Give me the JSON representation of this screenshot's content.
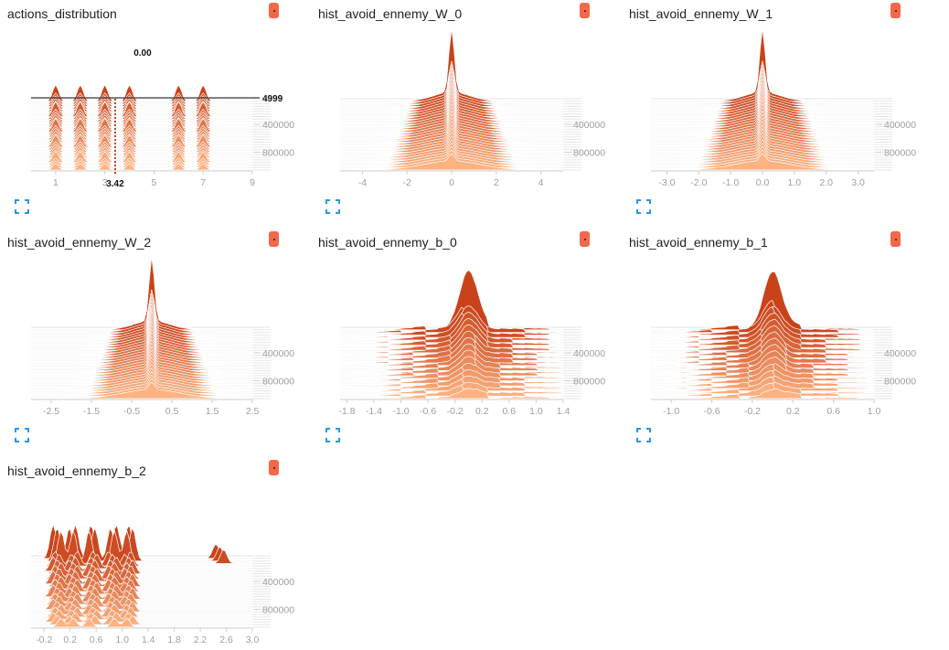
{
  "colors": {
    "accent": "#f3684a",
    "ridge_old": "#fdb282",
    "ridge_new": "#c9431a",
    "tick": "#9e9e9e",
    "expand_icon": "#2d96e6"
  },
  "cards": [
    {
      "id": "actions_distribution",
      "title": "actions_distribution",
      "menu_icon": "dots-vertical-icon",
      "expand_icon": "fullscreen-icon",
      "hover": {
        "value_label": "0.00",
        "x_label": "3.42",
        "step_label": "4999"
      },
      "chart_data": {
        "type": "histogram",
        "mode": "offset",
        "xlim": [
          0,
          9
        ],
        "xticks": [
          "1",
          "3",
          "5",
          "7",
          "9"
        ],
        "yticks": [
          "400000",
          "800000"
        ],
        "modes": [
          1,
          2,
          3,
          4,
          6,
          7
        ],
        "grid": true
      }
    },
    {
      "id": "hist_avoid_ennemy_W_0",
      "title": "hist_avoid_ennemy_W_0",
      "menu_icon": "dots-vertical-icon",
      "expand_icon": "fullscreen-icon",
      "chart_data": {
        "type": "histogram",
        "mode": "offset",
        "xlim": [
          -5,
          5
        ],
        "xticks": [
          "-4",
          "-2",
          "0",
          "2",
          "4"
        ],
        "yticks": [
          "400000",
          "800000"
        ],
        "center": 0,
        "grid": true
      }
    },
    {
      "id": "hist_avoid_ennemy_W_1",
      "title": "hist_avoid_ennemy_W_1",
      "menu_icon": "dots-vertical-icon",
      "expand_icon": "fullscreen-icon",
      "chart_data": {
        "type": "histogram",
        "mode": "offset",
        "xlim": [
          -3.5,
          3.5
        ],
        "xticks": [
          "-3.0",
          "-2.0",
          "-1.0",
          "0.0",
          "1.0",
          "2.0",
          "3.0"
        ],
        "yticks": [
          "400000",
          "800000"
        ],
        "center": 0,
        "grid": true
      }
    },
    {
      "id": "hist_avoid_ennemy_W_2",
      "title": "hist_avoid_ennemy_W_2",
      "menu_icon": "dots-vertical-icon",
      "expand_icon": "fullscreen-icon",
      "chart_data": {
        "type": "histogram",
        "mode": "offset",
        "xlim": [
          -3.0,
          2.5
        ],
        "xticks": [
          "-2.5",
          "-1.5",
          "-0.5",
          "0.5",
          "1.5",
          "2.5"
        ],
        "yticks": [
          "400000",
          "800000"
        ],
        "center": 0.0,
        "grid": true
      }
    },
    {
      "id": "hist_avoid_ennemy_b_0",
      "title": "hist_avoid_ennemy_b_0",
      "menu_icon": "dots-vertical-icon",
      "expand_icon": "fullscreen-icon",
      "chart_data": {
        "type": "histogram",
        "mode": "offset",
        "xlim": [
          -1.9,
          1.4
        ],
        "xticks": [
          "-1.8",
          "-1.4",
          "-1.0",
          "-0.6",
          "-0.2",
          "0.2",
          "0.6",
          "1.0",
          "1.4"
        ],
        "yticks": [
          "400000",
          "800000"
        ],
        "center": 0.0,
        "grid": true
      }
    },
    {
      "id": "hist_avoid_ennemy_b_1",
      "title": "hist_avoid_ennemy_b_1",
      "menu_icon": "dots-vertical-icon",
      "expand_icon": "fullscreen-icon",
      "chart_data": {
        "type": "histogram",
        "mode": "offset",
        "xlim": [
          -1.2,
          1.0
        ],
        "xticks": [
          "-1.0",
          "-0.6",
          "-0.2",
          "0.2",
          "0.6",
          "1.0"
        ],
        "yticks": [
          "400000",
          "800000"
        ],
        "center": 0.0,
        "grid": true
      }
    },
    {
      "id": "hist_avoid_ennemy_b_2",
      "title": "hist_avoid_ennemy_b_2",
      "menu_icon": "dots-vertical-icon",
      "expand_icon": "fullscreen-icon",
      "chart_data": {
        "type": "histogram",
        "mode": "offset",
        "xlim": [
          -0.4,
          3.0
        ],
        "xticks": [
          "-0.2",
          "0.2",
          "0.6",
          "1.0",
          "1.4",
          "1.8",
          "2.2",
          "2.6",
          "3.0"
        ],
        "yticks": [
          "400000",
          "800000"
        ],
        "modes": [
          0.0,
          0.25,
          0.55,
          0.85,
          1.1,
          2.5
        ],
        "grid": true
      }
    }
  ]
}
